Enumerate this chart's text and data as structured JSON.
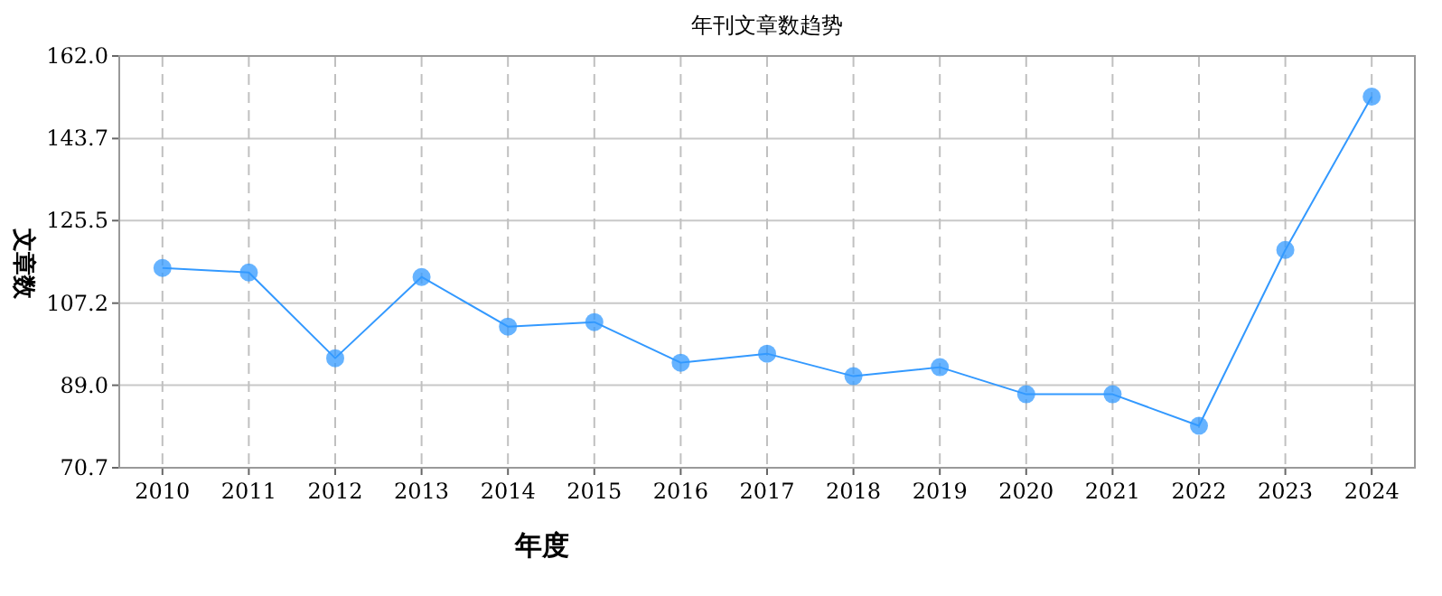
{
  "chart_data": {
    "type": "line",
    "title": "年刊文章数趋势",
    "xlabel": "年度",
    "ylabel": "文章数",
    "categories": [
      "2010",
      "2011",
      "2012",
      "2013",
      "2014",
      "2015",
      "2016",
      "2017",
      "2018",
      "2019",
      "2020",
      "2021",
      "2022",
      "2023",
      "2024"
    ],
    "series": [
      {
        "color": "#3399ff",
        "values": [
          115,
          114,
          95,
          113,
          102,
          103,
          94,
          96,
          91,
          93,
          87,
          87,
          80,
          119,
          153
        ]
      }
    ],
    "ylim": [
      70.7,
      162.0
    ],
    "yticks": [
      {
        "value": 70.7,
        "label": "70.7"
      },
      {
        "value": 89.0,
        "label": "89.0"
      },
      {
        "value": 107.2,
        "label": "107.2"
      },
      {
        "value": 125.5,
        "label": "125.5"
      },
      {
        "value": 143.7,
        "label": "143.7"
      },
      {
        "value": 162.0,
        "label": "162.0"
      }
    ],
    "grid": true,
    "marker": "circle",
    "line_style": "solid"
  }
}
